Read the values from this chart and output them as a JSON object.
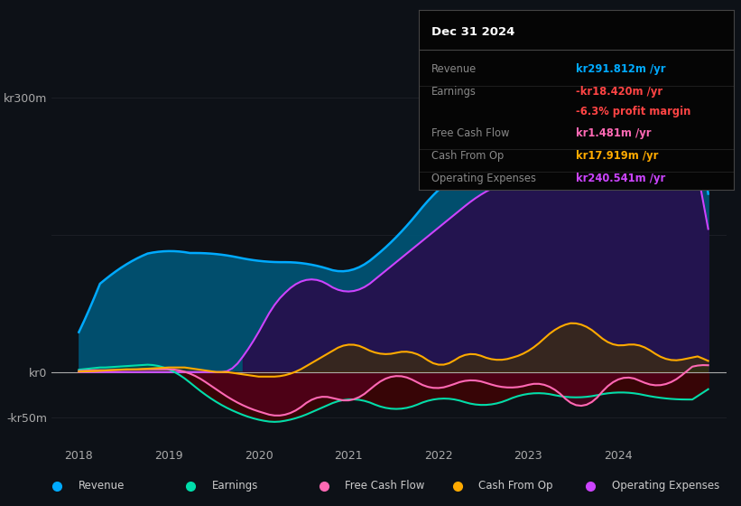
{
  "background_color": "#0d1117",
  "plot_bg_color": "#0d1117",
  "grid_color": "#2a2d35",
  "info_box": {
    "title": "Dec 31 2024",
    "rows": [
      {
        "label": "Revenue",
        "value": "kr291.812m /yr",
        "value_color": "#00aaff"
      },
      {
        "label": "Earnings",
        "value": "-kr18.420m /yr",
        "value_color": "#ff4444"
      },
      {
        "label": "",
        "value": "-6.3% profit margin",
        "value_color": "#ff4444"
      },
      {
        "label": "Free Cash Flow",
        "value": "kr1.481m /yr",
        "value_color": "#ff69b4"
      },
      {
        "label": "Cash From Op",
        "value": "kr17.919m /yr",
        "value_color": "#ffaa00"
      },
      {
        "label": "Operating Expenses",
        "value": "kr240.541m /yr",
        "value_color": "#cc44ff"
      }
    ]
  },
  "series": {
    "revenue": {
      "color": "#00aaff",
      "fill_color": "#005577"
    },
    "operating_expenses": {
      "color": "#cc44ff",
      "fill_color": "#2a0a4a"
    },
    "earnings": {
      "color": "#00ddaa",
      "fill_color": "#003322"
    },
    "free_cash_flow": {
      "color": "#ff69b4",
      "fill_color": "#5a0020"
    },
    "cash_from_op": {
      "color": "#ffaa00",
      "fill_color": "#443300"
    }
  },
  "legend": [
    {
      "label": "Revenue",
      "color": "#00aaff"
    },
    {
      "label": "Earnings",
      "color": "#00ddaa"
    },
    {
      "label": "Free Cash Flow",
      "color": "#ff69b4"
    },
    {
      "label": "Cash From Op",
      "color": "#ffaa00"
    },
    {
      "label": "Operating Expenses",
      "color": "#cc44ff"
    }
  ],
  "xlim_start": 2017.7,
  "xlim_end": 2025.2,
  "ylim_min": -80,
  "ylim_max": 340,
  "yticks": [
    300,
    150,
    0,
    -50
  ],
  "yticklabels": [
    "kr300m",
    "",
    "kr0",
    "-kr50m"
  ],
  "xtick_positions": [
    2018,
    2019,
    2020,
    2021,
    2022,
    2023,
    2024
  ]
}
